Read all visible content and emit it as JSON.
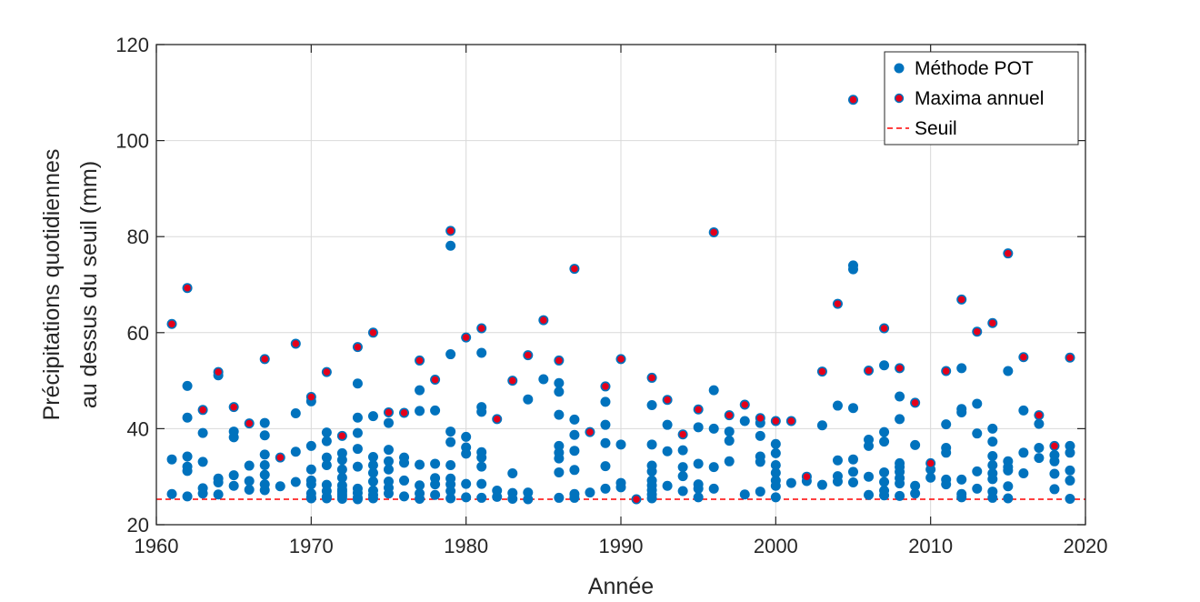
{
  "chart_data": {
    "type": "scatter",
    "xlabel": "Année",
    "ylabel_lines": [
      "Précipitations quotidiennes",
      "au dessus du seuil (mm)"
    ],
    "xlim": [
      1960,
      2020
    ],
    "ylim": [
      20,
      120
    ],
    "xticks": [
      1960,
      1970,
      1980,
      1990,
      2000,
      2010,
      2020
    ],
    "yticks": [
      20,
      40,
      60,
      80,
      100,
      120
    ],
    "grid": true,
    "legend_position": "top-right",
    "colors": {
      "pot": "#0072BD",
      "max": "#E3001B",
      "threshold": "#FF0000"
    },
    "threshold": {
      "name": "Seuil",
      "value": 25.3
    },
    "series": [
      {
        "name": "Méthode POT",
        "x": [
          1961,
          1961,
          1961,
          1962,
          1962,
          1962,
          1962,
          1962,
          1962,
          1962,
          1963,
          1963,
          1963,
          1963,
          1963,
          1964,
          1964,
          1964,
          1964,
          1964,
          1965,
          1965,
          1965,
          1965,
          1965,
          1966,
          1966,
          1966,
          1966,
          1967,
          1967,
          1967,
          1967,
          1967,
          1967,
          1967,
          1967,
          1968,
          1968,
          1969,
          1969,
          1969,
          1969,
          1970,
          1970,
          1970,
          1970,
          1970,
          1970,
          1970,
          1970,
          1970,
          1971,
          1971,
          1971,
          1971,
          1971,
          1971,
          1971,
          1971,
          1971,
          1972,
          1972,
          1972,
          1972,
          1972,
          1972,
          1972,
          1972,
          1972,
          1972,
          1972,
          1973,
          1973,
          1973,
          1973,
          1973,
          1973,
          1973,
          1973,
          1973,
          1973,
          1974,
          1974,
          1974,
          1974,
          1974,
          1974,
          1974,
          1974,
          1974,
          1975,
          1975,
          1975,
          1975,
          1975,
          1975,
          1975,
          1975,
          1976,
          1976,
          1976,
          1976,
          1976,
          1977,
          1977,
          1977,
          1977,
          1977,
          1977,
          1977,
          1978,
          1978,
          1978,
          1978,
          1978,
          1978,
          1979,
          1979,
          1979,
          1979,
          1979,
          1979,
          1979,
          1979,
          1979,
          1979,
          1980,
          1980,
          1980,
          1980,
          1980,
          1980,
          1981,
          1981,
          1981,
          1981,
          1981,
          1981,
          1981,
          1981,
          1981,
          1982,
          1982,
          1982,
          1983,
          1983,
          1983,
          1983,
          1984,
          1984,
          1984,
          1984,
          1985,
          1985,
          1986,
          1986,
          1986,
          1986,
          1986,
          1986,
          1986,
          1986,
          1986,
          1987,
          1987,
          1987,
          1987,
          1987,
          1987,
          1987,
          1988,
          1988,
          1989,
          1989,
          1989,
          1989,
          1989,
          1989,
          1990,
          1990,
          1990,
          1990,
          1991,
          1992,
          1992,
          1992,
          1992,
          1992,
          1992,
          1992,
          1992,
          1992,
          1992,
          1993,
          1993,
          1993,
          1993,
          1994,
          1994,
          1994,
          1994,
          1994,
          1995,
          1995,
          1995,
          1995,
          1995,
          1995,
          1996,
          1996,
          1996,
          1996,
          1996,
          1997,
          1997,
          1997,
          1997,
          1998,
          1998,
          1998,
          1999,
          1999,
          1999,
          1999,
          1999,
          1999,
          2000,
          2000,
          2000,
          2000,
          2000,
          2000,
          2000,
          2000,
          2001,
          2001,
          2002,
          2002,
          2003,
          2003,
          2003,
          2004,
          2004,
          2004,
          2004,
          2004,
          2005,
          2005,
          2005,
          2005,
          2005,
          2005,
          2005,
          2006,
          2006,
          2006,
          2006,
          2006,
          2007,
          2007,
          2007,
          2007,
          2007,
          2007,
          2007,
          2007,
          2008,
          2008,
          2008,
          2008,
          2008,
          2008,
          2008,
          2008,
          2008,
          2009,
          2009,
          2009,
          2009,
          2010,
          2010,
          2010,
          2011,
          2011,
          2011,
          2011,
          2011,
          2011,
          2012,
          2012,
          2012,
          2012,
          2012,
          2012,
          2012,
          2013,
          2013,
          2013,
          2013,
          2013,
          2014,
          2014,
          2014,
          2014,
          2014,
          2014,
          2014,
          2014,
          2014,
          2015,
          2015,
          2015,
          2015,
          2015,
          2015,
          2015,
          2016,
          2016,
          2016,
          2016,
          2017,
          2017,
          2017,
          2017,
          2018,
          2018,
          2018,
          2018,
          2018,
          2019,
          2019,
          2019,
          2019,
          2019,
          2019
        ],
        "y": [
          61.8,
          33.6,
          26.4,
          69.3,
          48.9,
          42.3,
          34.2,
          32.1,
          31.2,
          25.9,
          43.9,
          39.1,
          33.1,
          27.6,
          26.5,
          51.8,
          51.1,
          29.6,
          28.8,
          26.3,
          44.5,
          39.4,
          38.2,
          30.3,
          28.1,
          41.1,
          32.3,
          29.1,
          27.3,
          54.5,
          41.2,
          38.6,
          34.6,
          32.4,
          30.4,
          28.4,
          27.2,
          34.0,
          28.0,
          57.7,
          43.2,
          35.2,
          28.9,
          46.6,
          45.7,
          36.4,
          31.5,
          29.2,
          28.4,
          26.5,
          25.7,
          25.5,
          51.8,
          39.2,
          37.4,
          34.0,
          32.4,
          28.3,
          27.0,
          25.8,
          25.5,
          38.5,
          34.9,
          33.5,
          31.5,
          29.8,
          28.2,
          27.3,
          26.9,
          26.4,
          25.9,
          25.4,
          57.0,
          49.4,
          42.3,
          39.1,
          35.8,
          32.1,
          27.5,
          26.6,
          25.6,
          25.3,
          60.0,
          42.6,
          34.1,
          32.4,
          30.8,
          29.0,
          27.1,
          26.2,
          25.5,
          43.4,
          41.2,
          35.6,
          33.2,
          31.5,
          29.0,
          27.7,
          26.5,
          43.3,
          34.0,
          32.9,
          29.2,
          25.9,
          54.2,
          48.0,
          43.7,
          32.5,
          28.2,
          26.5,
          25.4,
          50.2,
          43.8,
          32.7,
          29.7,
          28.4,
          26.2,
          81.2,
          78.1,
          55.5,
          39.4,
          37.2,
          32.4,
          29.6,
          28.4,
          27.0,
          25.5,
          59.0,
          38.3,
          36.1,
          34.8,
          28.5,
          25.7,
          60.9,
          55.8,
          44.5,
          43.5,
          35.1,
          34.0,
          32.1,
          28.5,
          25.6,
          42.0,
          27.1,
          25.8,
          50.0,
          30.7,
          26.6,
          25.4,
          55.3,
          46.1,
          26.7,
          25.3,
          62.6,
          50.3,
          54.2,
          49.5,
          47.7,
          42.9,
          36.4,
          35.0,
          33.8,
          30.9,
          25.6,
          73.3,
          41.9,
          38.7,
          35.4,
          31.4,
          26.4,
          25.6,
          39.3,
          26.7,
          48.8,
          45.6,
          40.8,
          37.0,
          32.2,
          27.5,
          54.5,
          36.7,
          28.7,
          27.8,
          25.3,
          50.6,
          44.9,
          36.7,
          32.3,
          31.1,
          29.2,
          28.2,
          27.2,
          26.3,
          25.5,
          46.0,
          40.8,
          35.3,
          28.1,
          38.8,
          35.5,
          32.0,
          30.1,
          27.0,
          44.0,
          40.3,
          32.7,
          28.4,
          27.5,
          25.7,
          80.9,
          48.0,
          40.0,
          32.0,
          27.5,
          42.8,
          39.4,
          37.5,
          33.2,
          45.0,
          41.6,
          26.3,
          42.2,
          41.2,
          38.5,
          34.2,
          33.1,
          26.9,
          41.6,
          36.8,
          34.9,
          32.4,
          30.8,
          29.2,
          28.1,
          25.7,
          41.6,
          28.7,
          30.0,
          29.1,
          51.9,
          40.7,
          28.3,
          66.0,
          44.8,
          33.4,
          30.1,
          29.0,
          108.5,
          74.0,
          73.2,
          44.3,
          33.6,
          31.0,
          28.8,
          52.1,
          37.7,
          36.4,
          30.0,
          26.2,
          60.9,
          53.2,
          39.3,
          37.3,
          30.9,
          28.9,
          27.1,
          26.1,
          52.6,
          46.7,
          42.0,
          32.8,
          32.0,
          31.0,
          29.7,
          28.6,
          26.0,
          45.4,
          36.6,
          28.1,
          26.5,
          32.8,
          31.5,
          29.8,
          52.0,
          40.9,
          36.0,
          35.0,
          29.4,
          28.4,
          66.9,
          52.6,
          44.1,
          43.4,
          29.4,
          26.4,
          25.7,
          60.2,
          45.2,
          39.0,
          31.1,
          27.5,
          62.0,
          40.0,
          37.3,
          34.3,
          32.4,
          30.7,
          29.5,
          26.9,
          25.6,
          76.5,
          52.0,
          33.2,
          32.0,
          31.3,
          28.0,
          25.5,
          54.9,
          43.8,
          35.0,
          30.7,
          42.8,
          41.0,
          36.0,
          33.9,
          36.4,
          34.5,
          33.2,
          30.6,
          27.4,
          54.8,
          36.4,
          35.0,
          31.3,
          29.2,
          25.4
        ]
      },
      {
        "name": "Maxima annuel",
        "x": [
          1961,
          1962,
          1963,
          1964,
          1965,
          1966,
          1967,
          1968,
          1969,
          1970,
          1971,
          1972,
          1973,
          1974,
          1975,
          1976,
          1977,
          1978,
          1979,
          1980,
          1981,
          1982,
          1983,
          1984,
          1985,
          1986,
          1987,
          1988,
          1989,
          1990,
          1991,
          1992,
          1993,
          1994,
          1995,
          1996,
          1997,
          1998,
          1999,
          2000,
          2001,
          2002,
          2003,
          2004,
          2005,
          2006,
          2007,
          2008,
          2009,
          2010,
          2011,
          2012,
          2013,
          2014,
          2015,
          2016,
          2017,
          2018,
          2019
        ],
        "y": [
          61.8,
          69.3,
          43.9,
          51.8,
          44.5,
          41.1,
          54.5,
          34.0,
          57.7,
          46.6,
          51.8,
          38.5,
          57.0,
          60.0,
          43.4,
          43.3,
          54.2,
          50.2,
          81.2,
          59.0,
          60.9,
          42.0,
          50.0,
          55.3,
          62.6,
          54.2,
          73.3,
          39.3,
          48.8,
          54.5,
          25.3,
          50.6,
          46.0,
          38.8,
          44.0,
          80.9,
          42.8,
          45.0,
          42.2,
          41.6,
          41.6,
          30.0,
          51.9,
          66.0,
          108.5,
          52.1,
          60.9,
          52.6,
          45.4,
          32.8,
          52.0,
          66.9,
          60.2,
          62.0,
          76.5,
          54.9,
          42.8,
          36.4,
          54.8
        ]
      }
    ]
  }
}
